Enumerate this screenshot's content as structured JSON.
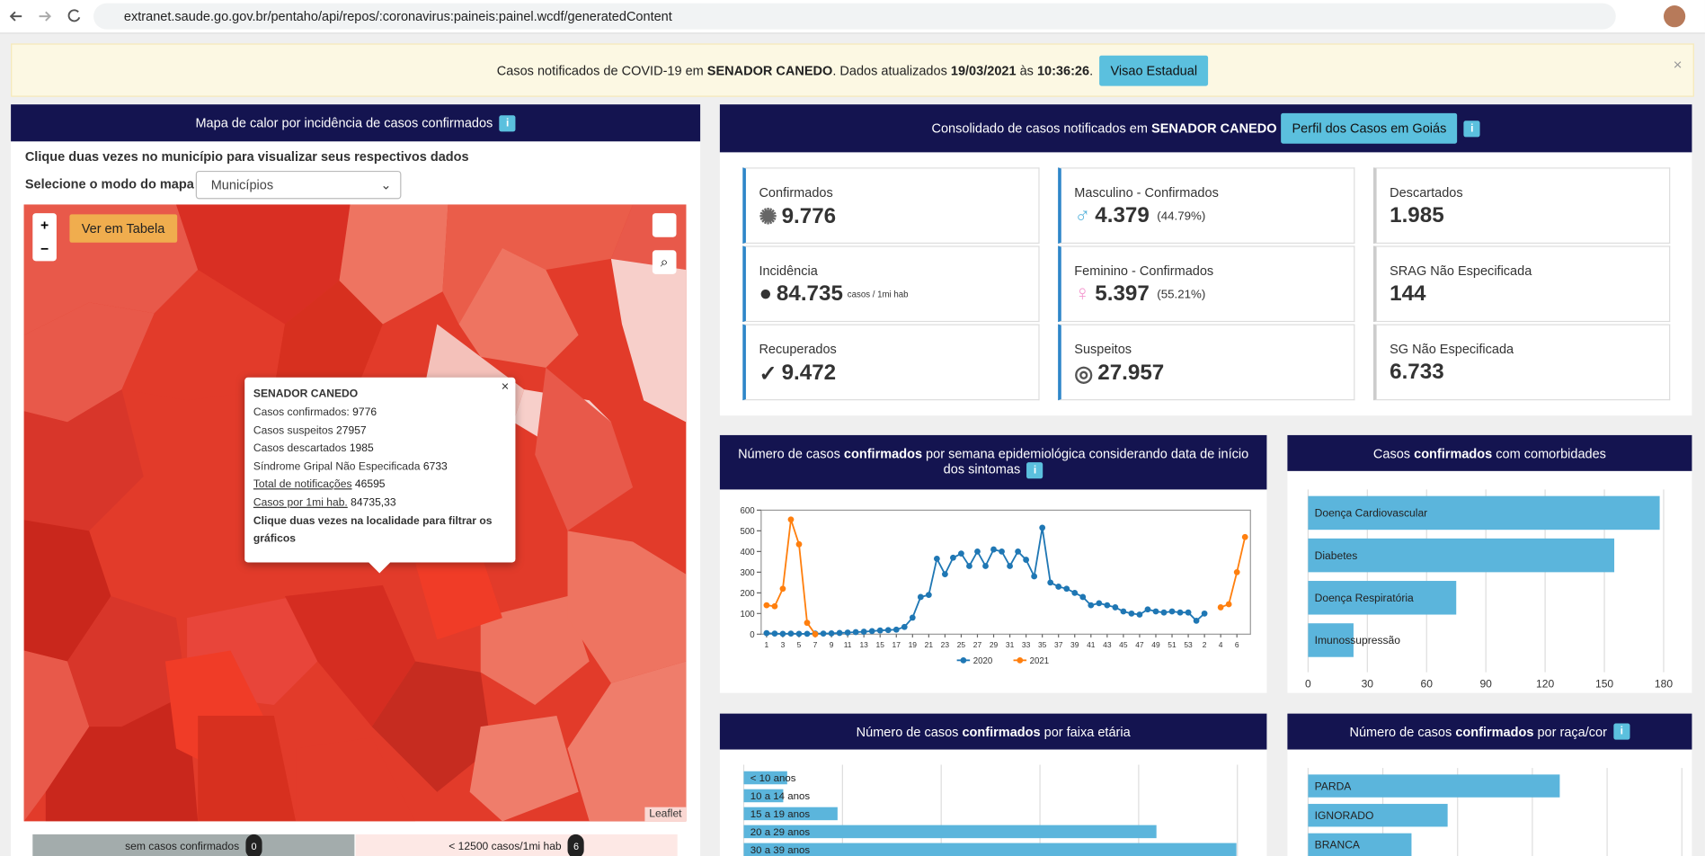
{
  "browser": {
    "url": "extranet.saude.go.gov.br/pentaho/api/repos/:coronavirus:paineis:painel.wcdf/generatedContent"
  },
  "banner": {
    "parts": [
      "Casos notificados de COVID-19 em ",
      "SENADOR CANEDO",
      ". Dados atualizados ",
      "19/03/2021",
      " às ",
      "10:36:26",
      "."
    ],
    "button": "Visao Estadual"
  },
  "map_panel": {
    "title": "Mapa de calor por incidência de casos confirmados",
    "instruction": "Clique duas vezes no município para visualizar seus respectivos dados",
    "mode_label": "Selecione o modo do mapa",
    "mode_option": "Municípios",
    "table_button": "Ver em Tabela",
    "attribution": "Leaflet",
    "popup": {
      "title": "SENADOR CANEDO",
      "rows": [
        {
          "label": "Casos confirmados:",
          "value": "9776"
        },
        {
          "label": "Casos suspeitos",
          "value": "27957"
        },
        {
          "label": "Casos descartados",
          "value": "1985"
        },
        {
          "label": "Síndrome Gripal Não Especificada",
          "value": "6733"
        },
        {
          "label": "Total de notificações",
          "value": "46595"
        },
        {
          "label": "Casos por 1mi hab.",
          "value": "84735,33"
        }
      ],
      "hint": "Clique duas vezes na localidade para filtrar os gráficos"
    },
    "legend": [
      {
        "label": "sem casos confirmados",
        "count": "0"
      },
      {
        "label": "< 12500 casos/1mi hab",
        "count": "6"
      }
    ]
  },
  "summary": {
    "title": [
      "Consolidado de casos notificados em ",
      "SENADOR CANEDO"
    ],
    "button": "Perfil dos Casos em Goiás",
    "cards": [
      {
        "label": "Confirmados",
        "value": "9.776"
      },
      {
        "label": "Masculino - Confirmados",
        "value": "4.379",
        "extra": "(44.79%)"
      },
      {
        "label": "Descartados",
        "value": "1.985"
      },
      {
        "label": "Incidência",
        "value": "84.735",
        "extra": "casos / 1mi hab"
      },
      {
        "label": "Feminino - Confirmados",
        "value": "5.397",
        "extra": "(55.21%)"
      },
      {
        "label": "SRAG Não Especificada",
        "value": "144"
      },
      {
        "label": "Recuperados",
        "value": "9.472"
      },
      {
        "label": "Suspeitos",
        "value": "27.957"
      },
      {
        "label": "SG Não Especificada",
        "value": "6.733"
      }
    ]
  },
  "chart_data": [
    {
      "type": "line",
      "title": [
        "Número de casos ",
        "confirmados",
        " por semana epidemiológica considerando data de início dos sintomas"
      ],
      "categories": [
        "1",
        null,
        "3",
        null,
        "5",
        null,
        "7",
        null,
        "9",
        null,
        "11",
        null,
        "13",
        null,
        "15",
        null,
        "17",
        null,
        "19",
        null,
        "21",
        null,
        "23",
        null,
        "25",
        null,
        "27",
        null,
        "29",
        null,
        "31",
        null,
        "33",
        null,
        "35",
        null,
        "37",
        null,
        "39",
        null,
        "41",
        null,
        "43",
        null,
        "45",
        null,
        "47",
        null,
        "49",
        null,
        "51",
        null,
        "53",
        null,
        "2",
        null,
        "4",
        null,
        "6",
        null
      ],
      "series": [
        {
          "name": "2020",
          "color": "#1f77b4",
          "values": [
            5,
            3,
            2,
            3,
            2,
            2,
            3,
            3,
            4,
            6,
            8,
            10,
            12,
            15,
            18,
            20,
            22,
            35,
            80,
            180,
            190,
            365,
            290,
            370,
            390,
            330,
            400,
            330,
            410,
            400,
            330,
            400,
            360,
            280,
            515,
            250,
            230,
            220,
            200,
            180,
            140,
            150,
            140,
            130,
            110,
            100,
            95,
            120,
            110,
            105,
            110,
            105,
            105,
            65,
            100,
            null,
            null,
            null,
            null,
            null
          ]
        },
        {
          "name": "2021",
          "color": "#ff7f0e",
          "values": [
            140,
            135,
            220,
            555,
            435,
            55,
            0,
            null,
            null,
            null,
            null,
            null,
            null,
            null,
            null,
            null,
            null,
            null,
            null,
            null,
            null,
            null,
            null,
            null,
            null,
            null,
            null,
            null,
            null,
            null,
            null,
            null,
            null,
            null,
            null,
            null,
            null,
            null,
            null,
            null,
            null,
            null,
            null,
            null,
            null,
            null,
            null,
            null,
            null,
            null,
            null,
            null,
            null,
            null,
            null,
            null,
            130,
            145,
            300,
            470
          ]
        }
      ],
      "ylim": [
        0,
        600
      ],
      "yticks": [
        0,
        100,
        200,
        300,
        400,
        500,
        600
      ]
    },
    {
      "type": "hbar",
      "title": [
        "Casos ",
        "confirmados",
        " com comorbidades"
      ],
      "categories": [
        "Doença Cardiovascular",
        "Diabetes",
        "Doença Respiratória",
        "Imunossupressão"
      ],
      "values": [
        178,
        155,
        75,
        23
      ],
      "color": "#5bb5dc",
      "xlim": [
        0,
        180
      ],
      "xticks": [
        0,
        30,
        60,
        90,
        120,
        150,
        180
      ],
      "grid": true
    },
    {
      "type": "hbar",
      "title": [
        "Número de casos ",
        "confirmados",
        " por faixa etária"
      ],
      "categories": [
        "< 10 anos",
        "10 a 14 anos",
        "15 a 19 anos",
        "20 a 29 anos",
        "30 a 39 anos"
      ],
      "values": [
        220,
        200,
        475,
        2090,
        2495
      ],
      "color": "#5bb5dc",
      "xlim": [
        0,
        2500
      ]
    },
    {
      "type": "hbar",
      "title": [
        "Número de casos ",
        "confirmados",
        " por raça/cor"
      ],
      "categories": [
        "PARDA",
        "IGNORADO",
        "BRANCA"
      ],
      "values": [
        1010,
        560,
        415
      ],
      "color": "#5bb5dc",
      "xlim": [
        0,
        1200
      ]
    }
  ]
}
